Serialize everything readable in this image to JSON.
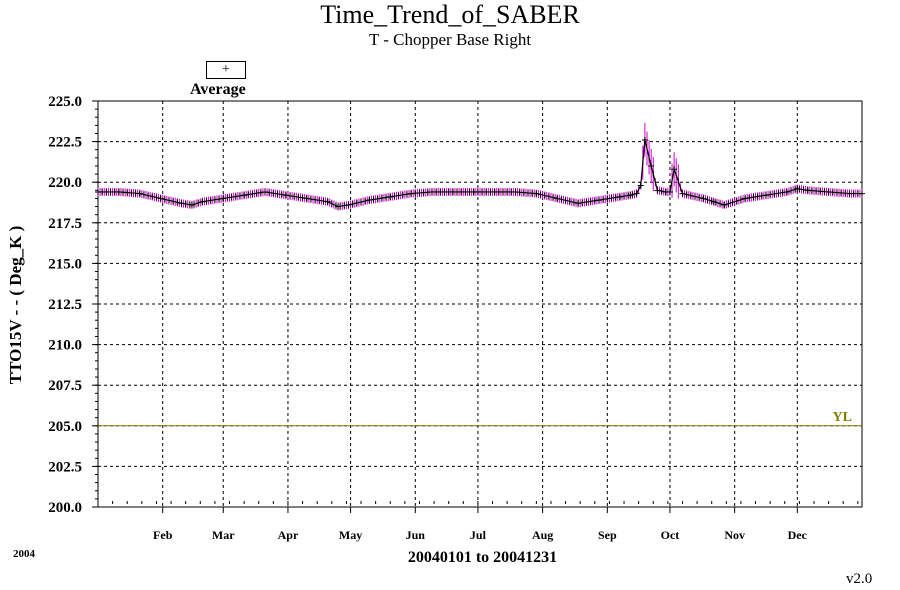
{
  "chart_data": {
    "type": "line",
    "title": "Time_Trend_of_SABER",
    "subtitle": "T - Chopper Base Right",
    "ylabel": "TTO15V  - - ( Deg_K )",
    "xlabel": "20040101 to 20041231",
    "year_label": "2004",
    "version": "v2.0",
    "legend": {
      "marker": "+",
      "label": "Average",
      "placement": "top-left"
    },
    "ylim": [
      200.0,
      225.0
    ],
    "yticks": [
      "200.0",
      "202.5",
      "205.0",
      "207.5",
      "210.0",
      "212.5",
      "215.0",
      "217.5",
      "220.0",
      "222.5",
      "225.0"
    ],
    "xlim_days": [
      0,
      366
    ],
    "month_ticks": [
      {
        "label": "Feb",
        "day": 31
      },
      {
        "label": "Mar",
        "day": 60
      },
      {
        "label": "Apr",
        "day": 91
      },
      {
        "label": "May",
        "day": 121
      },
      {
        "label": "Jun",
        "day": 152
      },
      {
        "label": "Jul",
        "day": 182
      },
      {
        "label": "Aug",
        "day": 213
      },
      {
        "label": "Sep",
        "day": 244
      },
      {
        "label": "Oct",
        "day": 274
      },
      {
        "label": "Nov",
        "day": 305
      },
      {
        "label": "Dec",
        "day": 335
      }
    ],
    "grid": true,
    "limit_line": {
      "label": "YL",
      "value": 205.0,
      "color": "#808000"
    },
    "series_color": "#000000",
    "spread_color": "#cc00cc",
    "series": [
      {
        "name": "Average",
        "x": [
          0,
          10,
          20,
          30,
          40,
          45,
          50,
          60,
          70,
          80,
          90,
          100,
          110,
          115,
          120,
          130,
          140,
          150,
          160,
          170,
          180,
          190,
          200,
          210,
          220,
          230,
          240,
          250,
          255,
          258,
          260,
          262,
          265,
          268,
          272,
          274,
          276,
          280,
          290,
          295,
          300,
          310,
          320,
          330,
          335,
          340,
          350,
          360,
          366
        ],
        "y": [
          219.4,
          219.4,
          219.3,
          219.0,
          218.7,
          218.6,
          218.8,
          219.0,
          219.2,
          219.4,
          219.2,
          219.0,
          218.8,
          218.5,
          218.6,
          218.9,
          219.1,
          219.3,
          219.4,
          219.4,
          219.4,
          219.4,
          219.4,
          219.3,
          219.0,
          218.7,
          218.9,
          219.1,
          219.2,
          219.3,
          219.8,
          222.6,
          221.0,
          219.5,
          219.4,
          219.4,
          220.8,
          219.3,
          219.0,
          218.8,
          218.6,
          219.0,
          219.2,
          219.4,
          219.6,
          219.5,
          219.4,
          219.3,
          219.3
        ]
      }
    ]
  }
}
